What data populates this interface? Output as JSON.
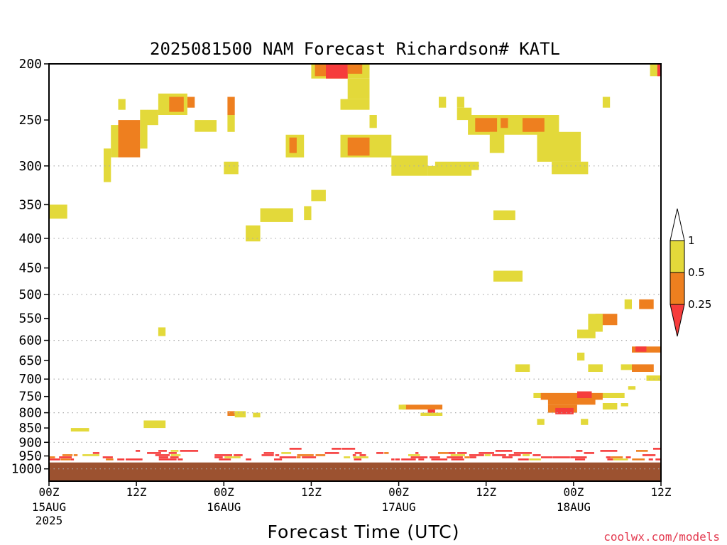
{
  "chart_data": {
    "type": "heatmap",
    "title": "2025081500 NAM Forecast Richardson# KATL",
    "xlabel": "Forecast Time (UTC)",
    "ylabel": "",
    "credit": "coolwx.com/models",
    "y_scale": "log",
    "y_inverted": true,
    "ylim": [
      1050,
      200
    ],
    "xlim": [
      0,
      84
    ],
    "x_units": "forecast hours from 2025-08-15 00Z",
    "y_ticks": [
      200,
      250,
      300,
      350,
      400,
      450,
      500,
      550,
      600,
      650,
      700,
      750,
      800,
      850,
      900,
      950,
      1000
    ],
    "x_ticks": [
      {
        "x": 0,
        "top": "00Z",
        "mid": "15AUG",
        "bottom": "2025"
      },
      {
        "x": 12,
        "top": "12Z",
        "mid": "",
        "bottom": ""
      },
      {
        "x": 24,
        "top": "00Z",
        "mid": "16AUG",
        "bottom": ""
      },
      {
        "x": 36,
        "top": "12Z",
        "mid": "",
        "bottom": ""
      },
      {
        "x": 48,
        "top": "00Z",
        "mid": "17AUG",
        "bottom": ""
      },
      {
        "x": 60,
        "top": "12Z",
        "mid": "",
        "bottom": ""
      },
      {
        "x": 72,
        "top": "00Z",
        "mid": "18AUG",
        "bottom": ""
      },
      {
        "x": 84,
        "top": "12Z",
        "mid": "",
        "bottom": ""
      }
    ],
    "dotted_grid_levels": [
      300,
      400,
      500,
      600,
      700,
      800,
      900,
      1000
    ],
    "ground_level": 975,
    "colors": {
      "ground": "#9c5230",
      "red": "#f63c3c",
      "orange": "#ee7f1f",
      "yellow": "#e3d93a",
      "grid": "#aaaaaa"
    },
    "legend": {
      "placement": "right",
      "labels": [
        "1",
        "0.5",
        "0.25"
      ],
      "bins": [
        {
          "range": "> 1",
          "color": "#ffffff"
        },
        {
          "range": "0.5 - 1",
          "color": "#e3d93a"
        },
        {
          "range": "0.25 - 0.5",
          "color": "#ee7f1f"
        },
        {
          "range": "< 0.25",
          "color": "#f63c3c"
        }
      ]
    },
    "regions": [
      {
        "x": [
          0,
          2.5
        ],
        "p": [
          350,
          370
        ],
        "c": "Y"
      },
      {
        "x": [
          7.5,
          8.5
        ],
        "p": [
          280,
          320
        ],
        "c": "Y"
      },
      {
        "x": [
          8.5,
          9.5
        ],
        "p": [
          255,
          290
        ],
        "c": "Y"
      },
      {
        "x": [
          9.5,
          12.5
        ],
        "p": [
          250,
          290
        ],
        "c": "O"
      },
      {
        "x": [
          9.5,
          10.5
        ],
        "p": [
          230,
          240
        ],
        "c": "Y"
      },
      {
        "x": [
          12.5,
          13.5
        ],
        "p": [
          240,
          280
        ],
        "c": "Y"
      },
      {
        "x": [
          13.5,
          15
        ],
        "p": [
          240,
          255
        ],
        "c": "Y"
      },
      {
        "x": [
          15,
          19
        ],
        "p": [
          225,
          245
        ],
        "c": "Y"
      },
      {
        "x": [
          16.5,
          18.5
        ],
        "p": [
          228,
          242
        ],
        "c": "O"
      },
      {
        "x": [
          19,
          20
        ],
        "p": [
          228,
          238
        ],
        "c": "O"
      },
      {
        "x": [
          20,
          23
        ],
        "p": [
          250,
          262
        ],
        "c": "Y"
      },
      {
        "x": [
          24.5,
          25.5
        ],
        "p": [
          228,
          245
        ],
        "c": "O"
      },
      {
        "x": [
          24.5,
          25.5
        ],
        "p": [
          245,
          262
        ],
        "c": "Y"
      },
      {
        "x": [
          24,
          26
        ],
        "p": [
          295,
          310
        ],
        "c": "Y"
      },
      {
        "x": [
          27,
          29
        ],
        "p": [
          380,
          405
        ],
        "c": "Y"
      },
      {
        "x": [
          29,
          33.5
        ],
        "p": [
          355,
          375
        ],
        "c": "Y"
      },
      {
        "x": [
          32.5,
          35
        ],
        "p": [
          265,
          290
        ],
        "c": "Y"
      },
      {
        "x": [
          33,
          34
        ],
        "p": [
          268,
          285
        ],
        "c": "O"
      },
      {
        "x": [
          35,
          36
        ],
        "p": [
          352,
          372
        ],
        "c": "Y"
      },
      {
        "x": [
          36,
          38
        ],
        "p": [
          330,
          345
        ],
        "c": "Y"
      },
      {
        "x": [
          36,
          44
        ],
        "p": [
          200,
          212
        ],
        "c": "Y"
      },
      {
        "x": [
          36.5,
          38
        ],
        "p": [
          200,
          210
        ],
        "c": "O"
      },
      {
        "x": [
          38,
          41
        ],
        "p": [
          200,
          212
        ],
        "c": "R"
      },
      {
        "x": [
          41,
          43
        ],
        "p": [
          200,
          208
        ],
        "c": "O"
      },
      {
        "x": [
          41,
          44
        ],
        "p": [
          212,
          230
        ],
        "c": "Y"
      },
      {
        "x": [
          40,
          44
        ],
        "p": [
          230,
          240
        ],
        "c": "Y"
      },
      {
        "x": [
          44,
          45
        ],
        "p": [
          245,
          258
        ],
        "c": "Y"
      },
      {
        "x": [
          40,
          47
        ],
        "p": [
          265,
          290
        ],
        "c": "Y"
      },
      {
        "x": [
          41,
          44
        ],
        "p": [
          268,
          288
        ],
        "c": "O"
      },
      {
        "x": [
          47,
          52
        ],
        "p": [
          288,
          312
        ],
        "c": "Y"
      },
      {
        "x": [
          52,
          58
        ],
        "p": [
          300,
          312
        ],
        "c": "Y"
      },
      {
        "x": [
          53,
          59
        ],
        "p": [
          295,
          305
        ],
        "c": "Y"
      },
      {
        "x": [
          53.5,
          54.5
        ],
        "p": [
          228,
          238
        ],
        "c": "Y"
      },
      {
        "x": [
          56,
          57
        ],
        "p": [
          228,
          238
        ],
        "c": "Y"
      },
      {
        "x": [
          56,
          58
        ],
        "p": [
          238,
          250
        ],
        "c": "Y"
      },
      {
        "x": [
          57.5,
          70
        ],
        "p": [
          245,
          265
        ],
        "c": "Y"
      },
      {
        "x": [
          58.5,
          61.5
        ],
        "p": [
          248,
          262
        ],
        "c": "O"
      },
      {
        "x": [
          62,
          63
        ],
        "p": [
          248,
          258
        ],
        "c": "O"
      },
      {
        "x": [
          65,
          68
        ],
        "p": [
          248,
          262
        ],
        "c": "O"
      },
      {
        "x": [
          60.5,
          62.5
        ],
        "p": [
          262,
          285
        ],
        "c": "Y"
      },
      {
        "x": [
          67,
          73
        ],
        "p": [
          262,
          295
        ],
        "c": "Y"
      },
      {
        "x": [
          69,
          74
        ],
        "p": [
          295,
          310
        ],
        "c": "Y"
      },
      {
        "x": [
          76,
          77
        ],
        "p": [
          228,
          238
        ],
        "c": "Y"
      },
      {
        "x": [
          61,
          64
        ],
        "p": [
          358,
          372
        ],
        "c": "Y"
      },
      {
        "x": [
          61,
          65
        ],
        "p": [
          455,
          475
        ],
        "c": "Y"
      },
      {
        "x": [
          15,
          16
        ],
        "p": [
          570,
          590
        ],
        "c": "Y"
      },
      {
        "x": [
          82.5,
          84
        ],
        "p": [
          200,
          210
        ],
        "c": "Y"
      },
      {
        "x": [
          83.5,
          84
        ],
        "p": [
          200,
          210
        ],
        "c": "R"
      },
      {
        "x": [
          75,
          78
        ],
        "p": [
          540,
          565
        ],
        "c": "O"
      },
      {
        "x": [
          74,
          76
        ],
        "p": [
          540,
          580
        ],
        "c": "Y"
      },
      {
        "x": [
          72.5,
          75
        ],
        "p": [
          575,
          595
        ],
        "c": "Y"
      },
      {
        "x": [
          79,
          80
        ],
        "p": [
          510,
          530
        ],
        "c": "Y"
      },
      {
        "x": [
          81,
          83
        ],
        "p": [
          510,
          530
        ],
        "c": "O"
      },
      {
        "x": [
          80,
          84
        ],
        "p": [
          615,
          630
        ],
        "c": "O"
      },
      {
        "x": [
          80.5,
          82
        ],
        "p": [
          615,
          628
        ],
        "c": "R"
      },
      {
        "x": [
          80,
          83
        ],
        "p": [
          660,
          680
        ],
        "c": "O"
      },
      {
        "x": [
          78.5,
          80
        ],
        "p": [
          660,
          675
        ],
        "c": "Y"
      },
      {
        "x": [
          82,
          84
        ],
        "p": [
          690,
          705
        ],
        "c": "Y"
      },
      {
        "x": [
          72.5,
          73.5
        ],
        "p": [
          630,
          650
        ],
        "c": "Y"
      },
      {
        "x": [
          64,
          66
        ],
        "p": [
          660,
          680
        ],
        "c": "Y"
      },
      {
        "x": [
          74,
          76
        ],
        "p": [
          660,
          680
        ],
        "c": "Y"
      },
      {
        "x": [
          66.5,
          79
        ],
        "p": [
          740,
          755
        ],
        "c": "Y"
      },
      {
        "x": [
          67.5,
          76
        ],
        "p": [
          740,
          760
        ],
        "c": "O"
      },
      {
        "x": [
          72.5,
          74.5
        ],
        "p": [
          735,
          755
        ],
        "c": "R"
      },
      {
        "x": [
          68.5,
          75
        ],
        "p": [
          755,
          775
        ],
        "c": "O"
      },
      {
        "x": [
          68.5,
          72.5
        ],
        "p": [
          775,
          800
        ],
        "c": "O"
      },
      {
        "x": [
          69.5,
          72
        ],
        "p": [
          785,
          805
        ],
        "c": "R"
      },
      {
        "x": [
          76,
          78
        ],
        "p": [
          770,
          790
        ],
        "c": "Y"
      },
      {
        "x": [
          78.5,
          79.5
        ],
        "p": [
          770,
          780
        ],
        "c": "Y"
      },
      {
        "x": [
          79.5,
          80.5
        ],
        "p": [
          720,
          730
        ],
        "c": "Y"
      },
      {
        "x": [
          48.5,
          54
        ],
        "p": [
          775,
          790
        ],
        "c": "O"
      },
      {
        "x": [
          48,
          49
        ],
        "p": [
          775,
          790
        ],
        "c": "Y"
      },
      {
        "x": [
          52,
          53
        ],
        "p": [
          790,
          805
        ],
        "c": "R"
      },
      {
        "x": [
          51,
          54
        ],
        "p": [
          800,
          810
        ],
        "c": "Y"
      },
      {
        "x": [
          24.5,
          25.5
        ],
        "p": [
          795,
          810
        ],
        "c": "O"
      },
      {
        "x": [
          25.5,
          27
        ],
        "p": [
          795,
          815
        ],
        "c": "Y"
      },
      {
        "x": [
          28,
          29
        ],
        "p": [
          800,
          815
        ],
        "c": "Y"
      },
      {
        "x": [
          13,
          16
        ],
        "p": [
          825,
          850
        ],
        "c": "Y"
      },
      {
        "x": [
          3,
          5.5
        ],
        "p": [
          850,
          862
        ],
        "c": "Y"
      },
      {
        "x": [
          67,
          68
        ],
        "p": [
          820,
          840
        ],
        "c": "Y"
      },
      {
        "x": [
          73,
          74
        ],
        "p": [
          820,
          840
        ],
        "c": "Y"
      },
      {
        "x": [
          0,
          84
        ],
        "p": [
          920,
          972
        ],
        "c": "N"
      }
    ]
  }
}
